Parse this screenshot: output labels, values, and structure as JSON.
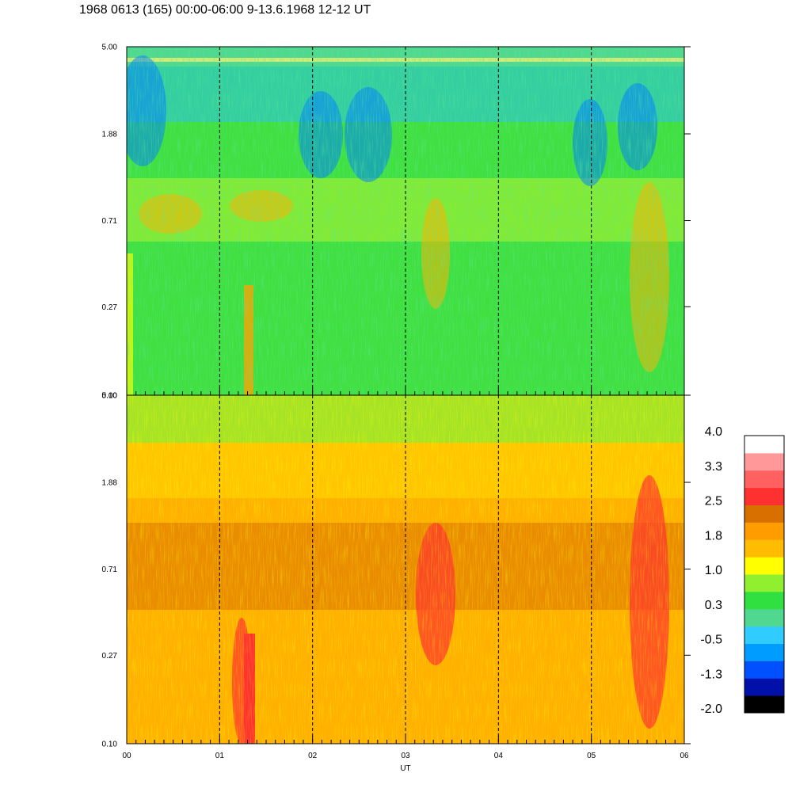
{
  "title": "1968 0613 (165) 00:00-06:00 9-13.6.1968  12-12 UT",
  "chart_data": [
    {
      "type": "heatmap",
      "panel": "upper",
      "x": {
        "label": "",
        "ticks": [
          "00",
          "01",
          "02",
          "03",
          "04",
          "05",
          "06"
        ],
        "range": [
          0,
          6
        ],
        "unit": "UT hour"
      },
      "y": {
        "ticks": [
          "0.10",
          "0.27",
          "0.71",
          "1.88",
          "5.00"
        ],
        "range": [
          0.1,
          5.0
        ],
        "scale": "log"
      },
      "dominant_value_range": [
        -1.3,
        1.8
      ],
      "grid": "vertical dashed lines at each hour"
    },
    {
      "type": "heatmap",
      "panel": "lower",
      "x": {
        "label": "UT",
        "ticks": [
          "00",
          "01",
          "02",
          "03",
          "04",
          "05",
          "06"
        ],
        "range": [
          0,
          6
        ],
        "unit": "UT hour"
      },
      "y": {
        "ticks": [
          "0.10",
          "0.27",
          "0.71",
          "1.88",
          "5.00"
        ],
        "range": [
          0.1,
          5.0
        ],
        "scale": "log"
      },
      "dominant_value_range": [
        0.3,
        2.5
      ],
      "grid": "vertical dashed lines at each hour"
    }
  ],
  "colorbar": {
    "labels": [
      "4.0",
      "3.3",
      "2.5",
      "1.8",
      "1.0",
      "0.3",
      "-0.5",
      "-1.3",
      "-2.0"
    ],
    "colors": [
      "#000000",
      "#0010a8",
      "#0050ff",
      "#009cff",
      "#30ccff",
      "#50d890",
      "#30e040",
      "#90f030",
      "#ffff00",
      "#ffbc00",
      "#ff9c00",
      "#d87000",
      "#ff3030",
      "#ff6060",
      "#ff9898",
      "#ffffff"
    ]
  }
}
